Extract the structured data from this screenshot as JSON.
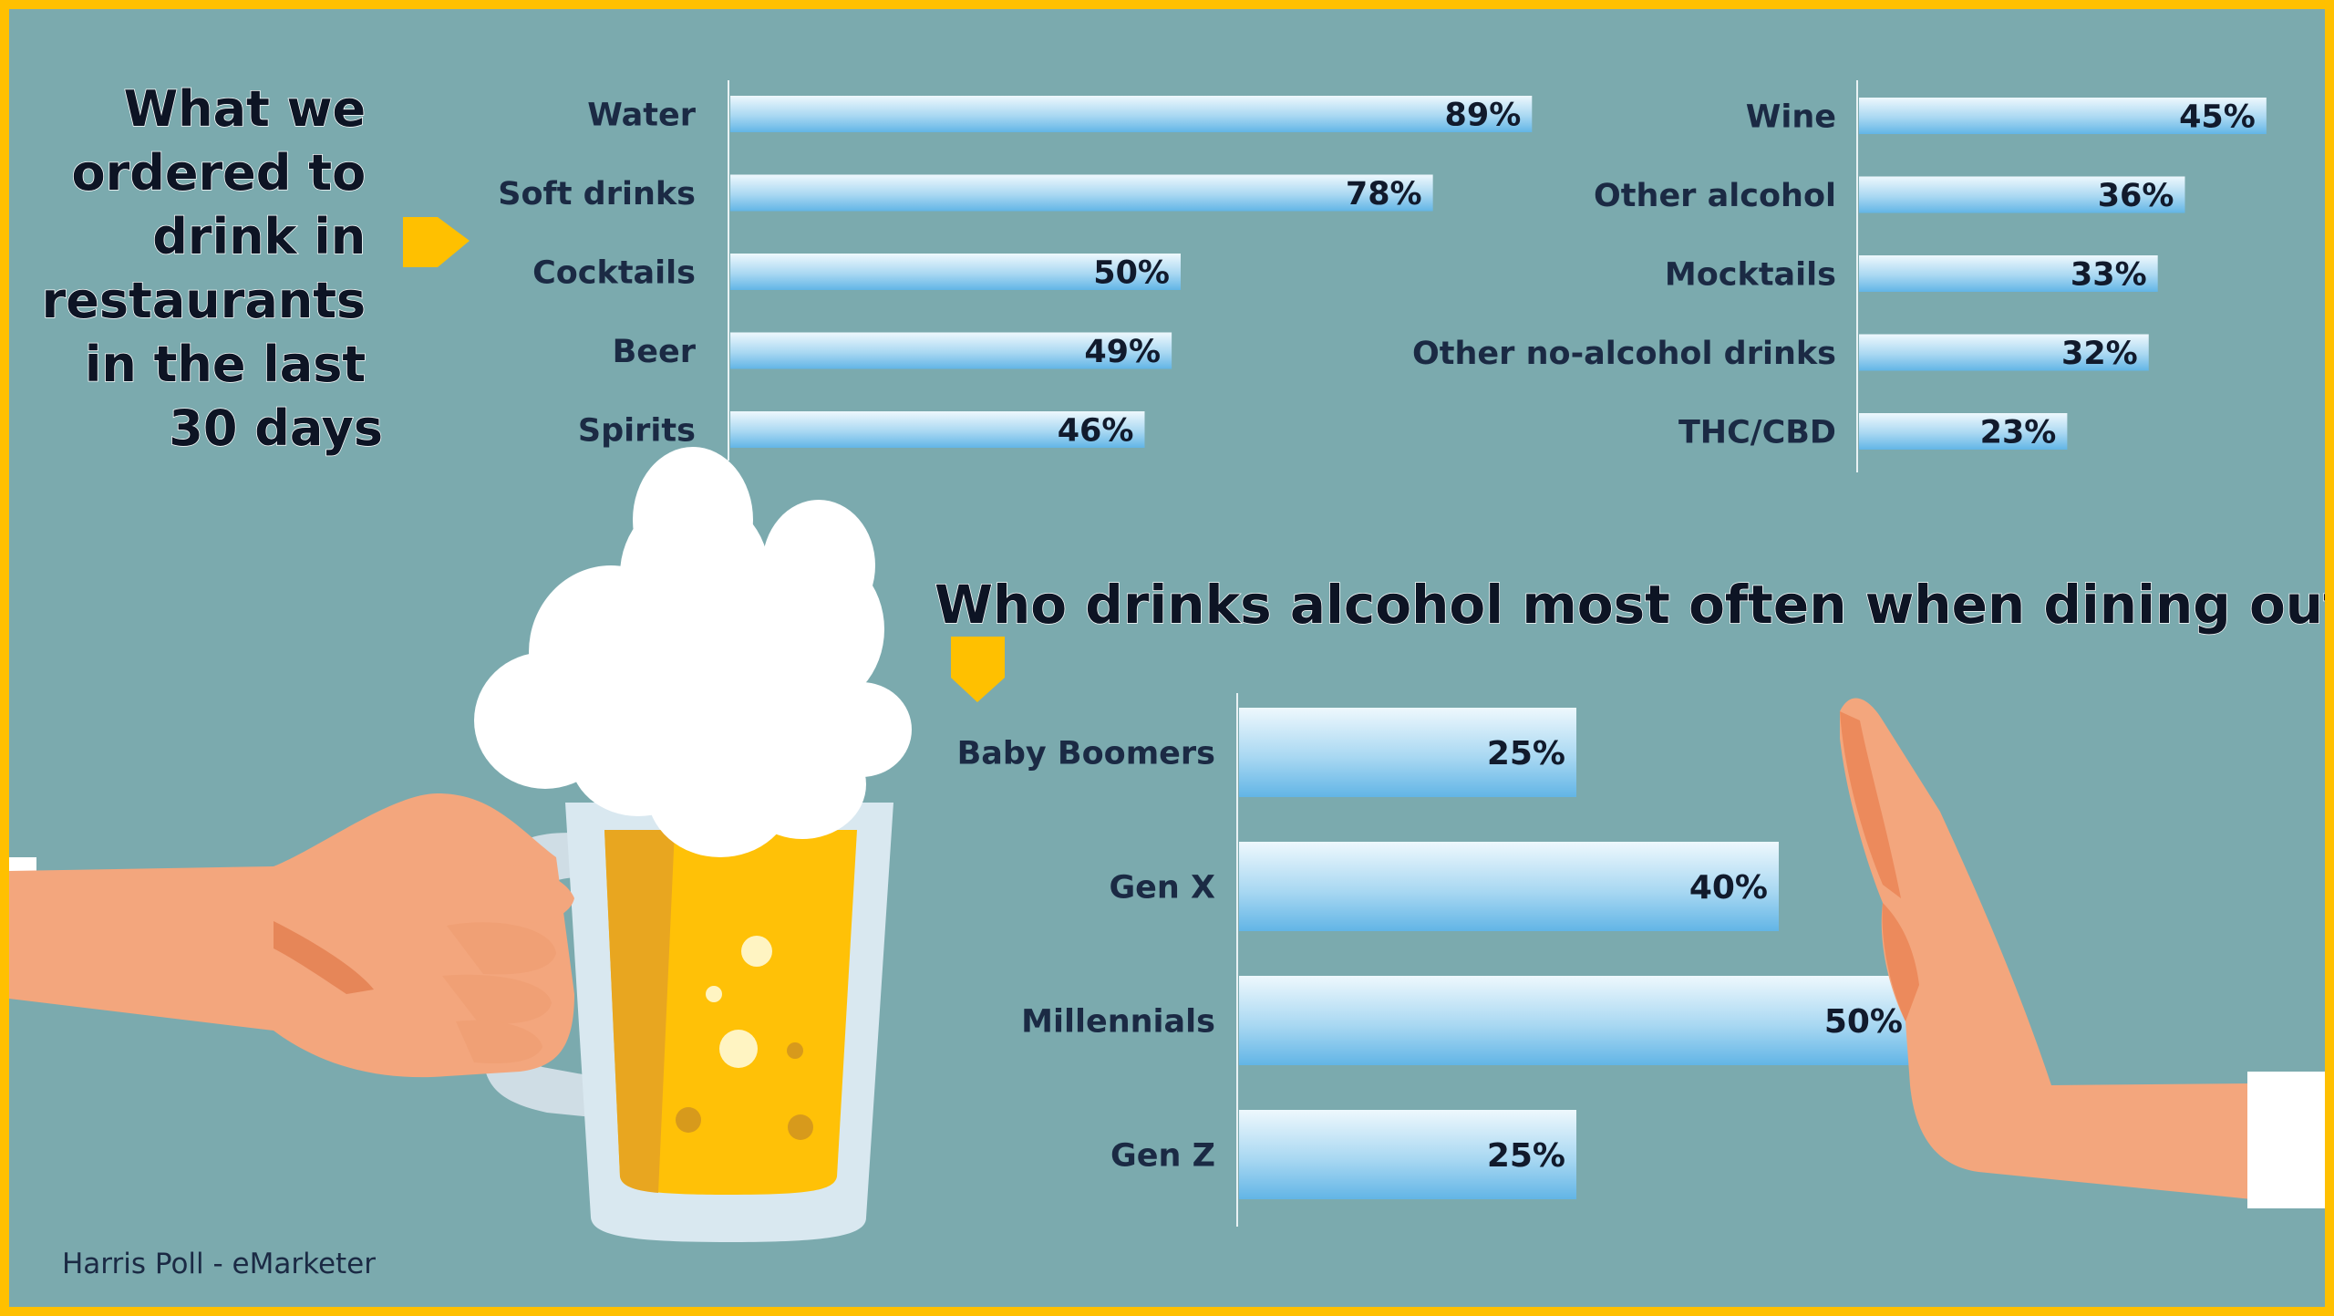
{
  "colors": {
    "frame": "#ffc000",
    "background": "#7baaae",
    "bar_light": "#e8f5fc",
    "bar_dark": "#6cbbe8",
    "text": "#1b2a44",
    "arrow": "#ffc000"
  },
  "icons": [
    "beer-mug-icon",
    "hand-holding-icon",
    "stop-hand-icon",
    "arrow-right-icon",
    "arrow-down-icon"
  ],
  "source": "Harris Poll - eMarketer",
  "chart_data": [
    {
      "type": "bar",
      "orientation": "horizontal",
      "title": "What we ordered to drink in restaurants in the last 30 days",
      "title_lines": [
        "What we",
        "ordered to",
        "drink in",
        "restaurants",
        "in the last",
        "30 days"
      ],
      "categories": [
        "Water",
        "Soft drinks",
        "Cocktails",
        "Beer",
        "Spirits"
      ],
      "values": [
        89,
        78,
        50,
        49,
        46
      ],
      "labels": [
        "89%",
        "78%",
        "50%",
        "49%",
        "46%"
      ],
      "xlim": [
        0,
        100
      ],
      "unit": "%"
    },
    {
      "type": "bar",
      "orientation": "horizontal",
      "categories": [
        "Wine",
        "Other alcohol",
        "Mocktails",
        "Other no-alcohol drinks",
        "THC/CBD"
      ],
      "values": [
        45,
        36,
        33,
        32,
        23
      ],
      "labels": [
        "45%",
        "36%",
        "33%",
        "32%",
        "23%"
      ],
      "xlim": [
        0,
        100
      ],
      "unit": "%"
    },
    {
      "type": "bar",
      "orientation": "horizontal",
      "title": "Who drinks alcohol most often when dining out",
      "categories": [
        "Baby Boomers",
        "Gen X",
        "Millennials",
        "Gen Z"
      ],
      "values": [
        25,
        40,
        50,
        25
      ],
      "labels": [
        "25%",
        "40%",
        "50%",
        "25%"
      ],
      "xlim": [
        0,
        50
      ],
      "unit": "%"
    }
  ]
}
